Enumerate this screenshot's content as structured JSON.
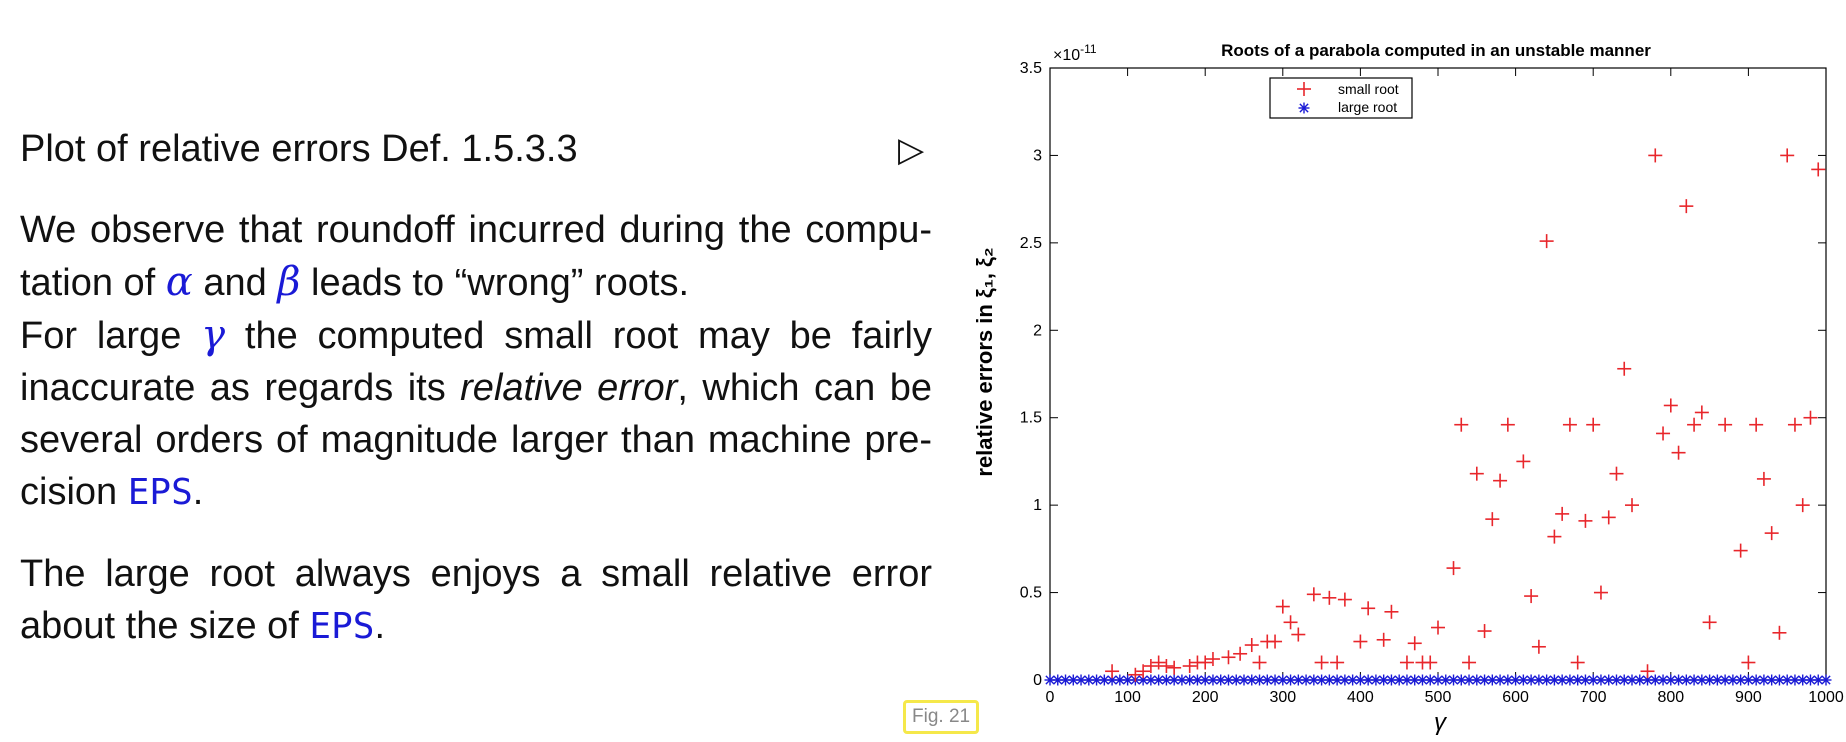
{
  "text": {
    "heading": "Plot of relative errors Def. 1.5.3.3",
    "heading_marker": "▷",
    "p1_a": "We observe that roundoff incurred during the compu-tation of ",
    "alpha": "α",
    "and": " and ",
    "beta": "β",
    "p1_b": " leads to “wrong” roots.",
    "p1_c": "For large ",
    "gamma": "γ",
    "p1_d": " the computed small root may be fairly inaccurate as regards its ",
    "rel_err": "relative error",
    "p1_e": ", which can be several orders of magnitude larger than machine pre-cision ",
    "eps": "EPS",
    "period": ".",
    "p2_a": "The large root always enjoys a small relative error about the size of ",
    "fig_label": "Fig. 21"
  },
  "chart_data": {
    "type": "scatter",
    "title": "Roots of a parabola computed in an unstable manner",
    "xlabel": "γ",
    "ylabel": "relative errors in ξ₁, ξ₂",
    "scale_label": "×10",
    "scale_exp": "-11",
    "xlim": [
      0,
      1000
    ],
    "ylim": [
      0,
      3.5
    ],
    "xticks": [
      0,
      100,
      200,
      300,
      400,
      500,
      600,
      700,
      800,
      900,
      1000
    ],
    "yticks": [
      0,
      0.5,
      1,
      1.5,
      2,
      2.5,
      3,
      3.5
    ],
    "legend": [
      "small root",
      "large root"
    ],
    "series": [
      {
        "name": "small root",
        "marker": "+",
        "color": "#e8262b",
        "points": [
          [
            80,
            0.05
          ],
          [
            110,
            0.03
          ],
          [
            120,
            0.05
          ],
          [
            130,
            0.08
          ],
          [
            140,
            0.1
          ],
          [
            150,
            0.08
          ],
          [
            160,
            0.07
          ],
          [
            180,
            0.08
          ],
          [
            190,
            0.1
          ],
          [
            200,
            0.1
          ],
          [
            210,
            0.12
          ],
          [
            230,
            0.13
          ],
          [
            245,
            0.15
          ],
          [
            260,
            0.2
          ],
          [
            270,
            0.1
          ],
          [
            280,
            0.22
          ],
          [
            290,
            0.22
          ],
          [
            300,
            0.42
          ],
          [
            310,
            0.33
          ],
          [
            320,
            0.26
          ],
          [
            340,
            0.49
          ],
          [
            350,
            0.1
          ],
          [
            360,
            0.47
          ],
          [
            370,
            0.1
          ],
          [
            380,
            0.46
          ],
          [
            400,
            0.22
          ],
          [
            410,
            0.41
          ],
          [
            430,
            0.23
          ],
          [
            440,
            0.39
          ],
          [
            460,
            0.1
          ],
          [
            470,
            0.21
          ],
          [
            480,
            0.1
          ],
          [
            490,
            0.1
          ],
          [
            500,
            0.3
          ],
          [
            520,
            0.64
          ],
          [
            530,
            1.46
          ],
          [
            540,
            0.1
          ],
          [
            550,
            1.18
          ],
          [
            560,
            0.28
          ],
          [
            570,
            0.92
          ],
          [
            580,
            1.14
          ],
          [
            590,
            1.46
          ],
          [
            610,
            1.25
          ],
          [
            620,
            0.48
          ],
          [
            630,
            0.19
          ],
          [
            640,
            2.51
          ],
          [
            650,
            0.82
          ],
          [
            660,
            0.95
          ],
          [
            670,
            1.46
          ],
          [
            680,
            0.1
          ],
          [
            690,
            0.91
          ],
          [
            700,
            1.46
          ],
          [
            710,
            0.5
          ],
          [
            720,
            0.93
          ],
          [
            730,
            1.18
          ],
          [
            740,
            1.78
          ],
          [
            750,
            1.0
          ],
          [
            770,
            0.05
          ],
          [
            780,
            3.0
          ],
          [
            790,
            1.41
          ],
          [
            800,
            1.57
          ],
          [
            810,
            1.3
          ],
          [
            820,
            2.71
          ],
          [
            830,
            1.46
          ],
          [
            840,
            1.53
          ],
          [
            850,
            0.33
          ],
          [
            870,
            1.46
          ],
          [
            890,
            0.74
          ],
          [
            900,
            0.1
          ],
          [
            910,
            1.46
          ],
          [
            920,
            1.15
          ],
          [
            930,
            0.84
          ],
          [
            940,
            0.27
          ],
          [
            950,
            3.0
          ],
          [
            960,
            1.46
          ],
          [
            970,
            1.0
          ],
          [
            980,
            1.5
          ],
          [
            990,
            2.92
          ]
        ]
      },
      {
        "name": "large root",
        "marker": "*",
        "color": "#1a1ad6",
        "value": 0
      }
    ]
  }
}
